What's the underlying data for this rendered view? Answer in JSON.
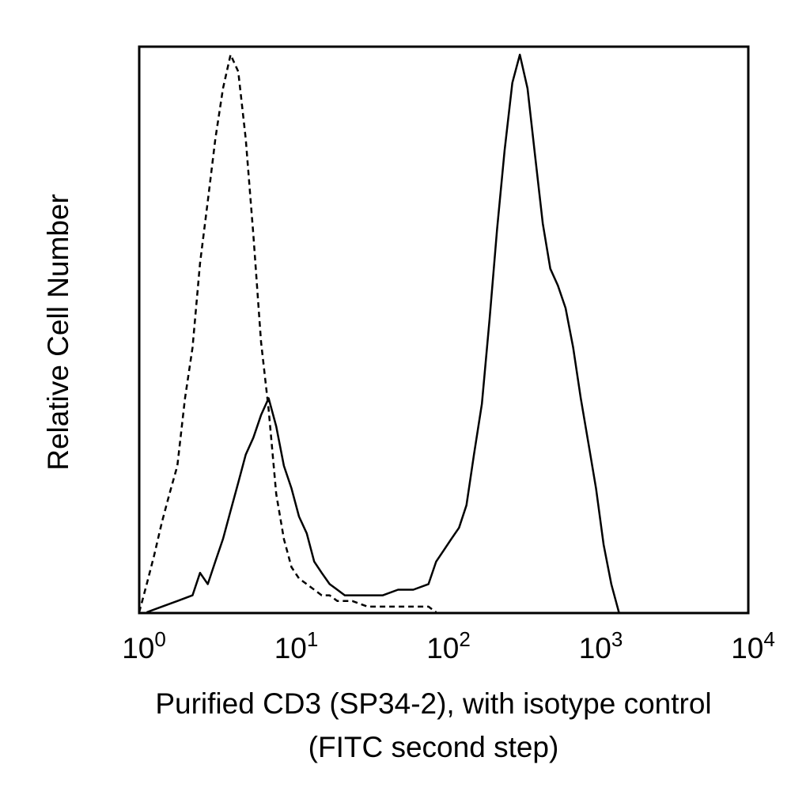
{
  "chart_data": {
    "type": "line",
    "title": "",
    "xlabel": "Purified CD3 (SP34-2), with isotype control",
    "xlabel_line2": "(FITC second step)",
    "ylabel": "Relative Cell Number",
    "x_scale": "log",
    "xlim": [
      1,
      10000
    ],
    "ylim": [
      0,
      100
    ],
    "grid": false,
    "legend": "none",
    "x_ticks": [
      {
        "base": "10",
        "exp": "0",
        "value": 1
      },
      {
        "base": "10",
        "exp": "1",
        "value": 10
      },
      {
        "base": "10",
        "exp": "2",
        "value": 100
      },
      {
        "base": "10",
        "exp": "3",
        "value": 1000
      },
      {
        "base": "10",
        "exp": "4",
        "value": 10000
      }
    ],
    "series": [
      {
        "style": "dashed",
        "color": "#000000",
        "points": [
          [
            1.0,
            0
          ],
          [
            1.12,
            5
          ],
          [
            1.25,
            10
          ],
          [
            1.41,
            16
          ],
          [
            1.58,
            21
          ],
          [
            1.78,
            26
          ],
          [
            2.0,
            38
          ],
          [
            2.24,
            47
          ],
          [
            2.51,
            62
          ],
          [
            2.82,
            73
          ],
          [
            3.16,
            84
          ],
          [
            3.55,
            93
          ],
          [
            3.98,
            99
          ],
          [
            4.47,
            96
          ],
          [
            5.01,
            84
          ],
          [
            5.62,
            67
          ],
          [
            6.31,
            48
          ],
          [
            7.08,
            36
          ],
          [
            7.94,
            21
          ],
          [
            8.91,
            13
          ],
          [
            10.0,
            8
          ],
          [
            11.2,
            6
          ],
          [
            12.6,
            5
          ],
          [
            14.1,
            4
          ],
          [
            15.8,
            3
          ],
          [
            17.8,
            3
          ],
          [
            20.0,
            2
          ],
          [
            25.1,
            2
          ],
          [
            31.6,
            1
          ],
          [
            39.8,
            1
          ],
          [
            50.1,
            1
          ],
          [
            63.1,
            1
          ],
          [
            79.4,
            1
          ],
          [
            89.1,
            0
          ]
        ]
      },
      {
        "style": "solid",
        "color": "#000000",
        "points": [
          [
            1.12,
            0
          ],
          [
            1.41,
            1
          ],
          [
            1.78,
            2
          ],
          [
            2.24,
            3
          ],
          [
            2.51,
            7
          ],
          [
            2.82,
            5
          ],
          [
            3.16,
            9
          ],
          [
            3.55,
            13
          ],
          [
            3.98,
            18
          ],
          [
            4.47,
            23
          ],
          [
            5.01,
            28
          ],
          [
            5.62,
            31
          ],
          [
            6.31,
            35
          ],
          [
            7.08,
            38
          ],
          [
            7.94,
            33
          ],
          [
            8.91,
            26
          ],
          [
            10.0,
            22
          ],
          [
            11.2,
            17
          ],
          [
            12.6,
            14
          ],
          [
            14.1,
            9
          ],
          [
            15.8,
            7
          ],
          [
            17.8,
            5
          ],
          [
            20.0,
            4
          ],
          [
            22.4,
            3
          ],
          [
            25.1,
            3
          ],
          [
            31.6,
            3
          ],
          [
            39.8,
            3
          ],
          [
            50.1,
            4
          ],
          [
            63.1,
            4
          ],
          [
            79.4,
            5
          ],
          [
            89.1,
            9
          ],
          [
            100,
            11
          ],
          [
            112,
            13
          ],
          [
            126,
            15
          ],
          [
            141,
            19
          ],
          [
            158,
            28
          ],
          [
            178,
            37
          ],
          [
            200,
            52
          ],
          [
            224,
            68
          ],
          [
            251,
            82
          ],
          [
            282,
            94
          ],
          [
            316,
            99
          ],
          [
            355,
            93
          ],
          [
            398,
            81
          ],
          [
            447,
            69
          ],
          [
            501,
            61
          ],
          [
            562,
            58
          ],
          [
            631,
            54
          ],
          [
            708,
            47
          ],
          [
            794,
            38
          ],
          [
            891,
            30
          ],
          [
            1000,
            22
          ],
          [
            1122,
            12
          ],
          [
            1259,
            5
          ],
          [
            1413,
            0
          ]
        ]
      }
    ]
  }
}
